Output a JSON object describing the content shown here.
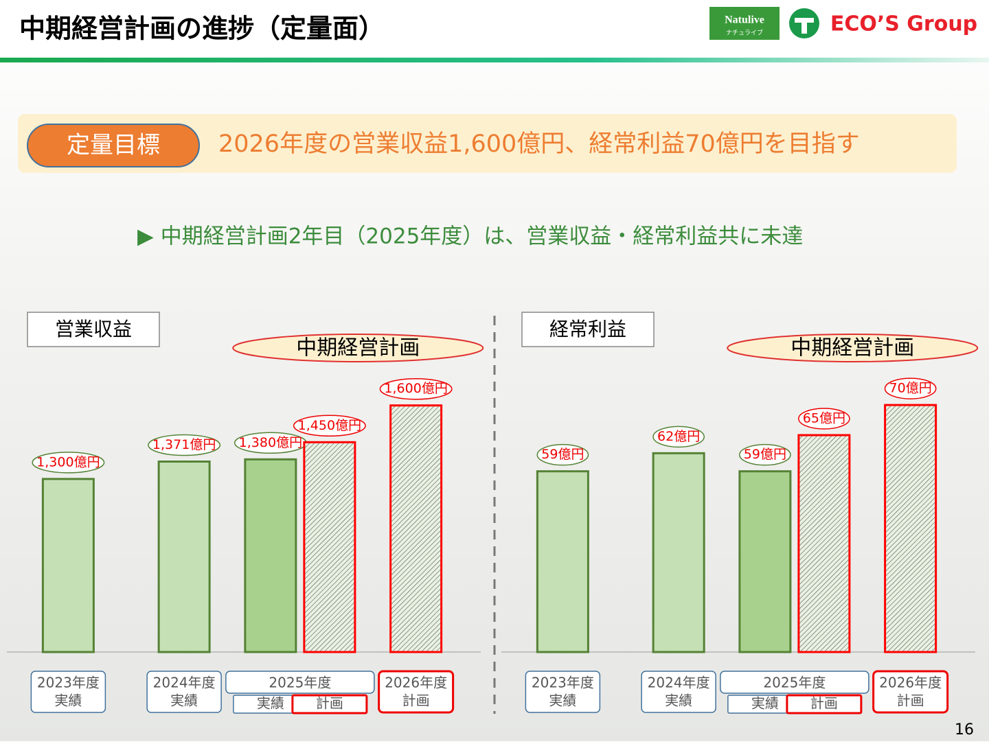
{
  "header": {
    "title": "中期経営計画の進捗（定量面）",
    "logo_left": "Natulive",
    "logo_left_sub": "ナチュライブ",
    "logo_right": "ECO’S Group"
  },
  "target": {
    "badge": "定量目標",
    "text": "2026年度の営業収益1,600億円、経常利益70億円を目指す"
  },
  "bullet": "▶ 中期経営計画2年目（2025年度）は、営業収益・経常利益共に未達",
  "page_number": "16",
  "chart_data": [
    {
      "type": "bar",
      "title": "営業収益",
      "plan_label": "中期経営計画",
      "ylim": [
        594,
        1700
      ],
      "groups": [
        {
          "label": "2023年度",
          "bars": [
            {
              "kind": "実績",
              "value": 1300,
              "value_label": "1,300億円",
              "color": "#c5e0b4",
              "stroke": "#548235",
              "hatched": false
            }
          ]
        },
        {
          "label": "2024年度",
          "bars": [
            {
              "kind": "実績",
              "value": 1371,
              "value_label": "1,371億円",
              "color": "#c5e0b4",
              "stroke": "#548235",
              "hatched": false
            }
          ]
        },
        {
          "label": "2025年度",
          "bars": [
            {
              "kind": "実績",
              "value": 1380,
              "value_label": "1,380億円",
              "color": "#a9d18e",
              "stroke": "#548235",
              "hatched": false
            },
            {
              "kind": "計画",
              "value": 1450,
              "value_label": "1,450億円",
              "color": "#e2efd9",
              "stroke": "#ff0000",
              "hatched": true
            }
          ]
        },
        {
          "label": "2026年度",
          "bars": [
            {
              "kind": "計画",
              "value": 1600,
              "value_label": "1,600億円",
              "color": "#e2efd9",
              "stroke": "#ff0000",
              "hatched": true
            }
          ]
        }
      ]
    },
    {
      "type": "bar",
      "title": "経常利益",
      "plan_label": "中期経営計画",
      "ylim": [
        29,
        74
      ],
      "groups": [
        {
          "label": "2023年度",
          "bars": [
            {
              "kind": "実績",
              "value": 59,
              "value_label": "59億円",
              "color": "#c5e0b4",
              "stroke": "#548235",
              "hatched": false
            }
          ]
        },
        {
          "label": "2024年度",
          "bars": [
            {
              "kind": "実績",
              "value": 62,
              "value_label": "62億円",
              "color": "#c5e0b4",
              "stroke": "#548235",
              "hatched": false
            }
          ]
        },
        {
          "label": "2025年度",
          "bars": [
            {
              "kind": "実績",
              "value": 59,
              "value_label": "59億円",
              "color": "#a9d18e",
              "stroke": "#548235",
              "hatched": false
            },
            {
              "kind": "計画",
              "value": 65,
              "value_label": "65億円",
              "color": "#e2efd9",
              "stroke": "#ff0000",
              "hatched": true
            }
          ]
        },
        {
          "label": "2026年度",
          "bars": [
            {
              "kind": "計画",
              "value": 70,
              "value_label": "70億円",
              "color": "#e2efd9",
              "stroke": "#ff0000",
              "hatched": true
            }
          ]
        }
      ]
    }
  ]
}
